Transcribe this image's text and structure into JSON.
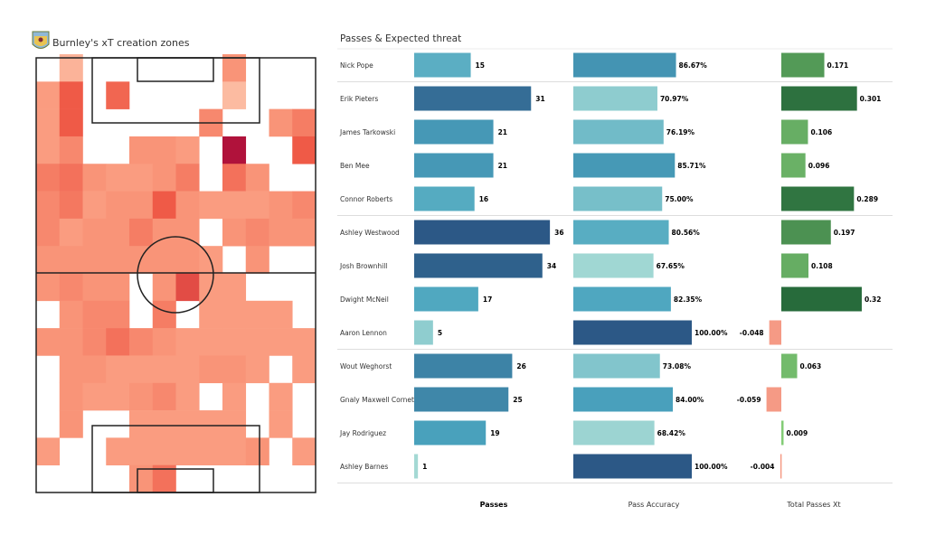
{
  "heatmap": {
    "title": "Burnley's xT creation zones",
    "colormap": "Reds",
    "grid": [
      [
        0,
        0.3,
        0,
        0,
        0,
        0,
        0,
        0,
        0.5,
        0,
        0,
        0
      ],
      [
        0.45,
        0.75,
        0,
        0.7,
        0,
        0,
        0,
        0,
        0.25,
        0,
        0,
        0
      ],
      [
        0.45,
        0.75,
        0,
        0,
        0,
        0,
        0,
        0.55,
        0,
        0,
        0.5,
        0.6
      ],
      [
        0.45,
        0.55,
        0,
        0,
        0.5,
        0.5,
        0.45,
        0,
        1.0,
        0,
        0,
        0.75
      ],
      [
        0.6,
        0.65,
        0.5,
        0.45,
        0.45,
        0.5,
        0.6,
        0,
        0.65,
        0.5,
        0,
        0
      ],
      [
        0.55,
        0.62,
        0.45,
        0.5,
        0.5,
        0.75,
        0.5,
        0.45,
        0.45,
        0.45,
        0.5,
        0.55
      ],
      [
        0.55,
        0.45,
        0.5,
        0.5,
        0.6,
        0.5,
        0.5,
        0,
        0.5,
        0.55,
        0.5,
        0.5
      ],
      [
        0.5,
        0.5,
        0.5,
        0.5,
        0.5,
        0.5,
        0.5,
        0.45,
        0,
        0.5,
        0,
        0
      ],
      [
        0.5,
        0.55,
        0.5,
        0.5,
        0,
        0.5,
        0.8,
        0.45,
        0.45,
        0,
        0,
        0
      ],
      [
        0,
        0.5,
        0.55,
        0.55,
        0,
        0.6,
        0,
        0.45,
        0.45,
        0.45,
        0.45,
        0
      ],
      [
        0.5,
        0.5,
        0.55,
        0.65,
        0.55,
        0.5,
        0.45,
        0.45,
        0.45,
        0.45,
        0.45,
        0.45
      ],
      [
        0,
        0.5,
        0.5,
        0.45,
        0.45,
        0.45,
        0.45,
        0.5,
        0.5,
        0.45,
        0,
        0.45
      ],
      [
        0,
        0.5,
        0.45,
        0.45,
        0.5,
        0.55,
        0.45,
        0,
        0.45,
        0,
        0.45,
        0
      ],
      [
        0,
        0.5,
        0,
        0,
        0.45,
        0.45,
        0.45,
        0.45,
        0.45,
        0,
        0.45,
        0
      ],
      [
        0.45,
        0,
        0,
        0.45,
        0.45,
        0.45,
        0.45,
        0.45,
        0.45,
        0.5,
        0,
        0.45
      ],
      [
        0,
        0,
        0,
        0,
        0.5,
        0.65,
        0,
        0,
        0,
        0,
        0,
        0
      ]
    ]
  },
  "chart_data": {
    "type": "table",
    "title": "Passes & Expected threat",
    "columns": [
      "Passes",
      "Pass Accuracy",
      "Total Passes Xt"
    ],
    "group_breaks_after": [
      "Nick Pope",
      "Connor Roberts",
      "Aaron  Lennon",
      "Ashley Barnes"
    ],
    "rows": [
      {
        "player": "Nick Pope",
        "passes": 15,
        "passes_label": "15",
        "accuracy": 86.67,
        "accuracy_label": "86.67%",
        "xt": 0.171,
        "xt_label": "0.171"
      },
      {
        "player": "Erik Pieters",
        "passes": 31,
        "passes_label": "31",
        "accuracy": 70.97,
        "accuracy_label": "70.97%",
        "xt": 0.301,
        "xt_label": "0.301"
      },
      {
        "player": "James  Tarkowski",
        "passes": 21,
        "passes_label": "21",
        "accuracy": 76.19,
        "accuracy_label": "76.19%",
        "xt": 0.106,
        "xt_label": "0.106"
      },
      {
        "player": "Ben Mee",
        "passes": 21,
        "passes_label": "21",
        "accuracy": 85.71,
        "accuracy_label": "85.71%",
        "xt": 0.096,
        "xt_label": "0.096"
      },
      {
        "player": "Connor Roberts",
        "passes": 16,
        "passes_label": "16",
        "accuracy": 75.0,
        "accuracy_label": "75.00%",
        "xt": 0.289,
        "xt_label": "0.289"
      },
      {
        "player": "Ashley Westwood",
        "passes": 36,
        "passes_label": "36",
        "accuracy": 80.56,
        "accuracy_label": "80.56%",
        "xt": 0.197,
        "xt_label": "0.197"
      },
      {
        "player": "Josh Brownhill",
        "passes": 34,
        "passes_label": "34",
        "accuracy": 67.65,
        "accuracy_label": "67.65%",
        "xt": 0.108,
        "xt_label": "0.108"
      },
      {
        "player": "Dwight McNeil",
        "passes": 17,
        "passes_label": "17",
        "accuracy": 82.35,
        "accuracy_label": "82.35%",
        "xt": 0.32,
        "xt_label": "0.32"
      },
      {
        "player": "Aaron  Lennon",
        "passes": 5,
        "passes_label": "5",
        "accuracy": 100.0,
        "accuracy_label": "100.00%",
        "xt": -0.048,
        "xt_label": "-0.048"
      },
      {
        "player": "Wout Weghorst",
        "passes": 26,
        "passes_label": "26",
        "accuracy": 73.08,
        "accuracy_label": "73.08%",
        "xt": 0.063,
        "xt_label": "0.063"
      },
      {
        "player": "Gnaly Maxwell Cornet",
        "passes": 25,
        "passes_label": "25",
        "accuracy": 84.0,
        "accuracy_label": "84.00%",
        "xt": -0.059,
        "xt_label": "-0.059"
      },
      {
        "player": "Jay Rodriguez",
        "passes": 19,
        "passes_label": "19",
        "accuracy": 68.42,
        "accuracy_label": "68.42%",
        "xt": 0.009,
        "xt_label": "0.009"
      },
      {
        "player": "Ashley Barnes",
        "passes": 1,
        "passes_label": "1",
        "accuracy": 100.0,
        "accuracy_label": "100.00%",
        "xt": -0.004,
        "xt_label": "-0.004"
      }
    ]
  },
  "colors": {
    "blue_light": "#a9dcd5",
    "blue_mid": "#4ba5bf",
    "blue_dark": "#2c5886",
    "green_light": "#86cf78",
    "green_dark": "#276b3b",
    "negative": "#f59a85",
    "separator": "#dddddd"
  }
}
